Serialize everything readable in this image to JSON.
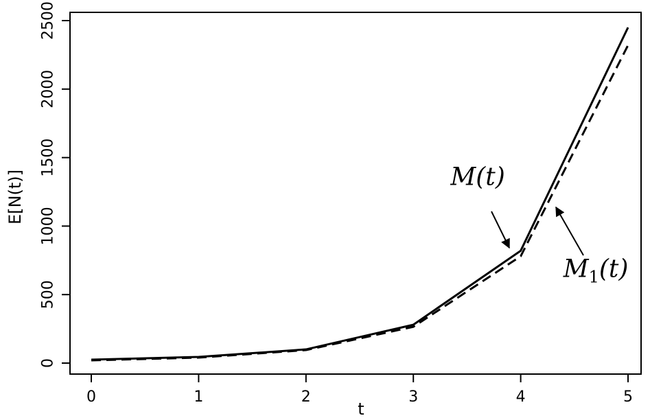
{
  "chart_data": {
    "type": "line",
    "xlabel": "t",
    "ylabel": "E[N(t)]",
    "xlim": [
      0,
      5
    ],
    "ylim": [
      0,
      2500
    ],
    "x_ticks": [
      "0",
      "1",
      "2",
      "3",
      "4",
      "5"
    ],
    "y_ticks": [
      "0",
      "500",
      "1000",
      "1500",
      "2000",
      "2500"
    ],
    "grid": false,
    "series": [
      {
        "style": "solid",
        "color": "#000000",
        "x": [
          0,
          1,
          2,
          3,
          4,
          5
        ],
        "y": [
          25,
          45,
          100,
          280,
          820,
          2450
        ]
      },
      {
        "style": "dashed",
        "color": "#000000",
        "x": [
          0,
          1,
          2,
          3,
          4,
          5
        ],
        "y": [
          20,
          40,
          95,
          265,
          780,
          2320
        ]
      }
    ],
    "annotations": [
      {
        "text": "M(t)",
        "main": "M",
        "sub": "",
        "arg": "(t)",
        "series_index": 0,
        "x": 3.6,
        "y": 1300
      },
      {
        "text": "M1(t)",
        "main": "M",
        "sub": "1",
        "arg": "(t)",
        "series_index": 1,
        "x": 4.7,
        "y": 630
      }
    ]
  }
}
